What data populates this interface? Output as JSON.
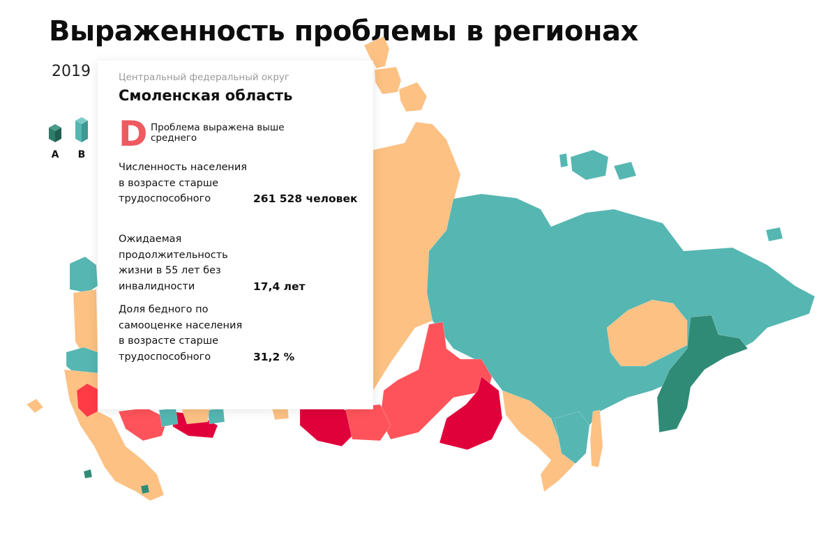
{
  "title": "Выраженность проблемы в регионах",
  "year": "2019",
  "legend": {
    "items": [
      {
        "label": "A",
        "color": "#2d7b69"
      },
      {
        "label": "B",
        "color": "#56b6b1"
      }
    ]
  },
  "palette": {
    "teal": "#56b6b1",
    "dark_teal": "#2f8b76",
    "orange": "#fcc183",
    "salmon": "#ff535b",
    "crimson": "#e0003a",
    "grade_d": "#ee5a5f"
  },
  "tooltip": {
    "district": "Центральный федеральный округ",
    "region": "Смоленская область",
    "grade": "D",
    "grade_description": "Проблема выражена выше среднего",
    "stats": [
      {
        "label": "Численность населения в возрасте старше трудоспособного",
        "value": "261 528 человек"
      },
      {
        "label": "Ожидаемая продолжительность жизни в 55 лет без инвалидности",
        "value": "17,4 лет"
      },
      {
        "label": "Доля бедного по самооценке населения в возрасте старше трудоспособного",
        "value": "31,2 %"
      }
    ]
  }
}
